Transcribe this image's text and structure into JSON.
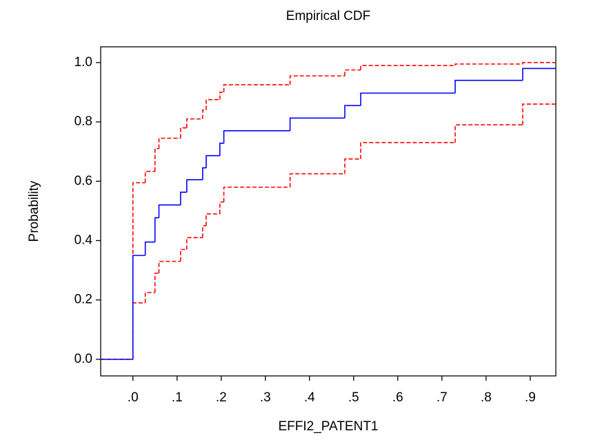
{
  "chart_data": {
    "type": "step",
    "title": "Empirical CDF",
    "xlabel": "EFFI2_PATENT1",
    "ylabel": "Probability",
    "x": [
      -0.073,
      0,
      0.028,
      0.05,
      0.059,
      0.108,
      0.122,
      0.158,
      0.166,
      0.197,
      0.206,
      0.356,
      0.48,
      0.516,
      0.73,
      0.883
    ],
    "series": [
      {
        "color": "#ff0000",
        "linestyle": "dashed",
        "values": [
          0,
          0.19,
          0.225,
          0.29,
          0.33,
          0.37,
          0.41,
          0.45,
          0.49,
          0.53,
          0.58,
          0.625,
          0.675,
          0.73,
          0.79,
          0.86
        ]
      },
      {
        "color": "#ff0000",
        "linestyle": "dashed",
        "values": [
          0,
          0.595,
          0.633,
          0.71,
          0.745,
          0.78,
          0.81,
          0.84,
          0.875,
          0.9,
          0.925,
          0.955,
          0.975,
          0.99,
          0.995,
          1.0
        ]
      },
      {
        "color": "#0000ff",
        "linestyle": "solid",
        "values": [
          0,
          0.35,
          0.395,
          0.477,
          0.52,
          0.563,
          0.605,
          0.645,
          0.686,
          0.728,
          0.77,
          0.813,
          0.855,
          0.897,
          0.94,
          0.98
        ]
      }
    ],
    "xlim": [
      -0.073,
      0.958
    ],
    "ylim": [
      -0.056,
      1.053
    ],
    "xticks": [
      {
        "value": 0,
        "label": ".0"
      },
      {
        "value": 0.1,
        "label": ".1"
      },
      {
        "value": 0.2,
        "label": ".2"
      },
      {
        "value": 0.3,
        "label": ".3"
      },
      {
        "value": 0.4,
        "label": ".4"
      },
      {
        "value": 0.5,
        "label": ".5"
      },
      {
        "value": 0.6,
        "label": ".6"
      },
      {
        "value": 0.7,
        "label": ".7"
      },
      {
        "value": 0.8,
        "label": ".8"
      },
      {
        "value": 0.9,
        "label": ".9"
      }
    ],
    "yticks": [
      {
        "value": 0,
        "label": "0.0"
      },
      0.2,
      0.4,
      0.6,
      0.8,
      {
        "value": 1,
        "label": "1.0"
      }
    ],
    "grid": false
  }
}
